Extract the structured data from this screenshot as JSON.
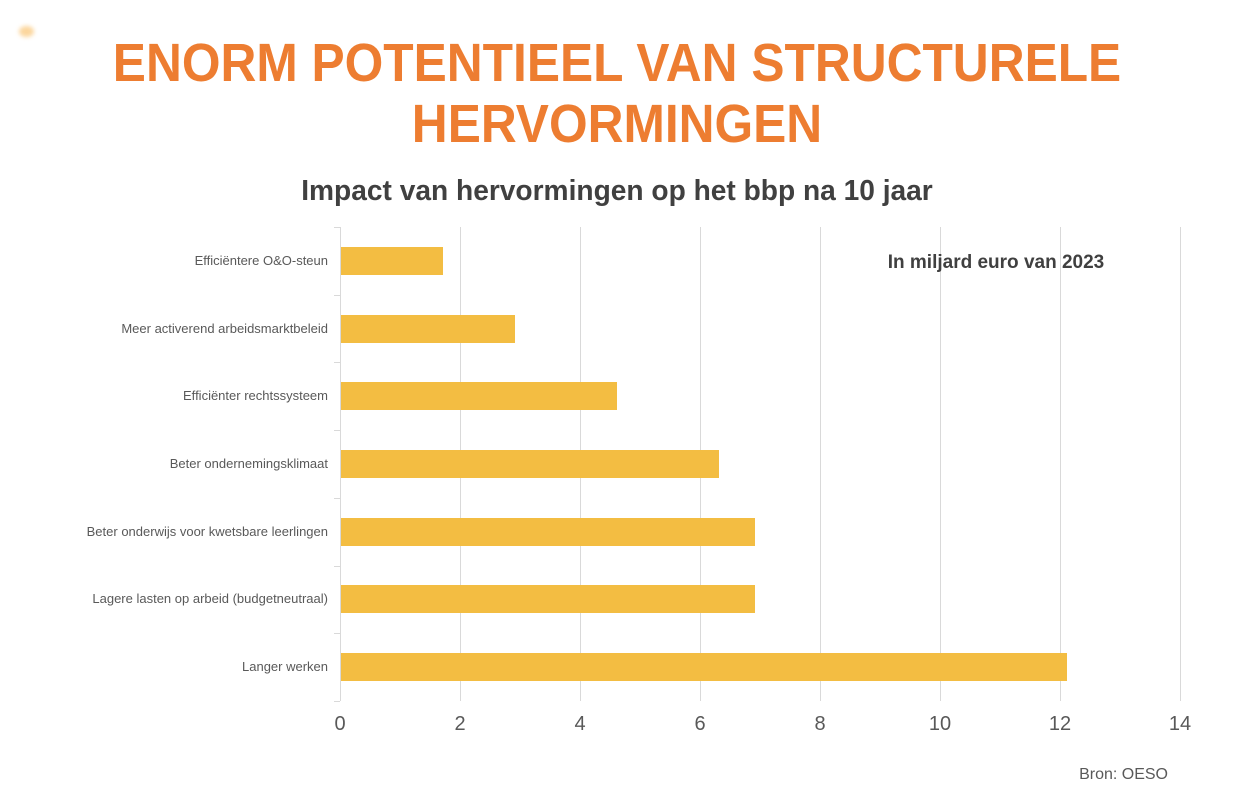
{
  "page": {
    "title_lines": [
      "ENORM POTENTIEEL VAN STRUCTURELE",
      "HERVORMINGEN"
    ]
  },
  "chart_data": {
    "type": "bar",
    "orientation": "horizontal",
    "title": "Impact van hervormingen op het bbp na 10 jaar",
    "categories": [
      "Efficiëntere O&O-steun",
      "Meer activerend arbeidsmarktbeleid",
      "Efficiënter rechtssysteem",
      "Beter ondernemingsklimaat",
      "Beter onderwijs voor kwetsbare leerlingen",
      "Lagere lasten op arbeid (budgetneutraal)",
      "Langer werken"
    ],
    "values": [
      1.7,
      2.9,
      4.6,
      6.3,
      6.9,
      6.9,
      12.1
    ],
    "xlabel": "",
    "ylabel": "",
    "xlim": [
      0,
      14
    ],
    "xticks": [
      0,
      2,
      4,
      6,
      8,
      10,
      12,
      14
    ],
    "grid": true,
    "legend": false,
    "unit_note": "In miljard euro van 2023",
    "source": "Bron: OESO"
  },
  "colors": {
    "title": "#ed7d31",
    "subtitle": "#404040",
    "bar": "#f3bd42",
    "axis_text": "#595959",
    "gridline": "#d9d9d9",
    "dot": "#fbcf8c"
  }
}
